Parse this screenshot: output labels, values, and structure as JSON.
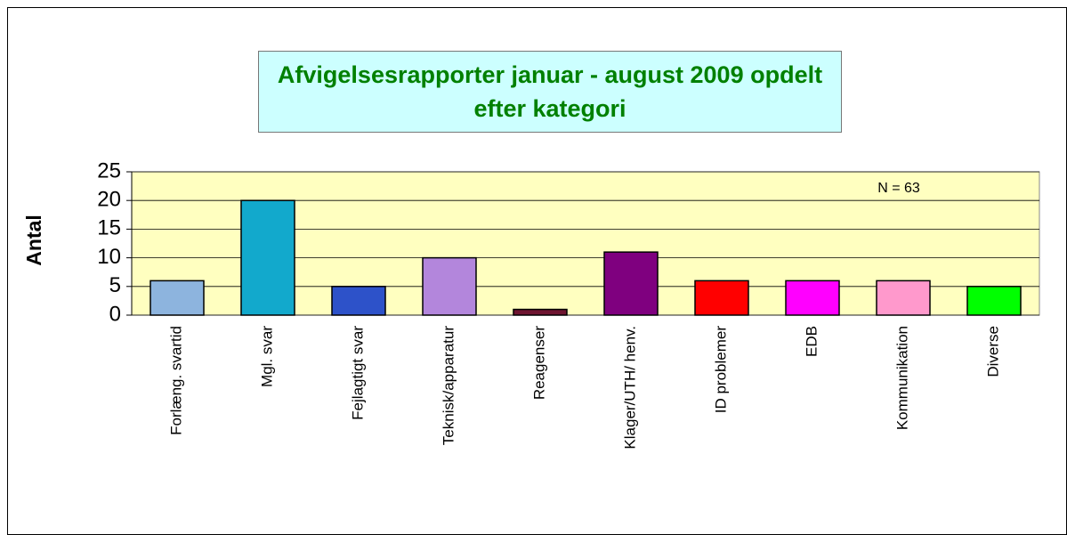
{
  "chart_data": {
    "type": "bar",
    "title": "Afvigelsesrapporter januar - august 2009 opdelt efter kategori",
    "ylabel": "Antal",
    "annotation": "N = 63",
    "categories": [
      "Forlæng. svartid",
      "Mgl. svar",
      "Fejlagtigt svar",
      "Teknisk/apparatur",
      "Reagenser",
      "Klager/UTH/ henv.",
      "ID problemer",
      "EDB",
      "Kommunikation",
      "Diverse"
    ],
    "values": [
      6,
      20,
      5,
      10,
      1,
      11,
      6,
      6,
      6,
      5
    ],
    "colors": [
      "#8db4de",
      "#12a9cc",
      "#2d52c9",
      "#b386dc",
      "#6e1530",
      "#7f007f",
      "#ff0000",
      "#ff00ff",
      "#ff99cc",
      "#00ff00"
    ],
    "ylim": [
      0,
      25
    ],
    "yticks": [
      0,
      5,
      10,
      15,
      20,
      25
    ],
    "grid": true
  }
}
